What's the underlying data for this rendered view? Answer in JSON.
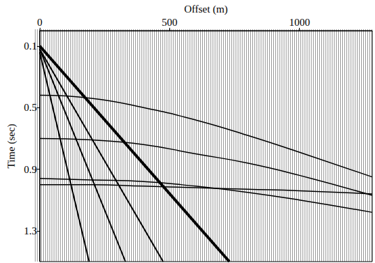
{
  "chart_data": {
    "type": "line",
    "x_label": "Offset (m)",
    "y_label": "Time (sec)",
    "xlim": [
      0,
      1280
    ],
    "xticks": [
      0,
      500,
      1000
    ],
    "ylim": [
      0,
      1.5
    ],
    "yticks": [
      0.1,
      0.5,
      0.9,
      1.3
    ],
    "color": "#000000",
    "series": [
      {
        "x": [
          0,
          200,
          400,
          600,
          800,
          1000,
          1280
        ],
        "values": [
          0.42,
          0.44,
          0.5,
          0.58,
          0.68,
          0.79,
          0.95
        ]
      },
      {
        "x": [
          0,
          200,
          400,
          600,
          800,
          1000,
          1280
        ],
        "values": [
          0.7,
          0.71,
          0.74,
          0.8,
          0.86,
          0.94,
          1.07
        ]
      },
      {
        "x": [
          0,
          200,
          400,
          600,
          800,
          1000,
          1280
        ],
        "values": [
          0.96,
          0.97,
          0.98,
          1.01,
          1.05,
          1.1,
          1.18
        ]
      },
      {
        "x": [
          0,
          200,
          400,
          600,
          800,
          1000,
          1280
        ],
        "values": [
          1.0,
          1.0,
          1.01,
          1.02,
          1.03,
          1.04,
          1.06
        ]
      },
      {
        "x": [
          0,
          730
        ],
        "values": [
          0.1,
          1.5
        ],
        "line_style": "thick"
      },
      {
        "x": [
          0,
          475
        ],
        "values": [
          0.12,
          1.5
        ],
        "line_style": "thin"
      },
      {
        "x": [
          0,
          330
        ],
        "values": [
          0.12,
          1.5
        ],
        "line_style": "thin"
      },
      {
        "x": [
          0,
          190
        ],
        "values": [
          0.14,
          1.5
        ],
        "line_style": "thin"
      }
    ]
  }
}
